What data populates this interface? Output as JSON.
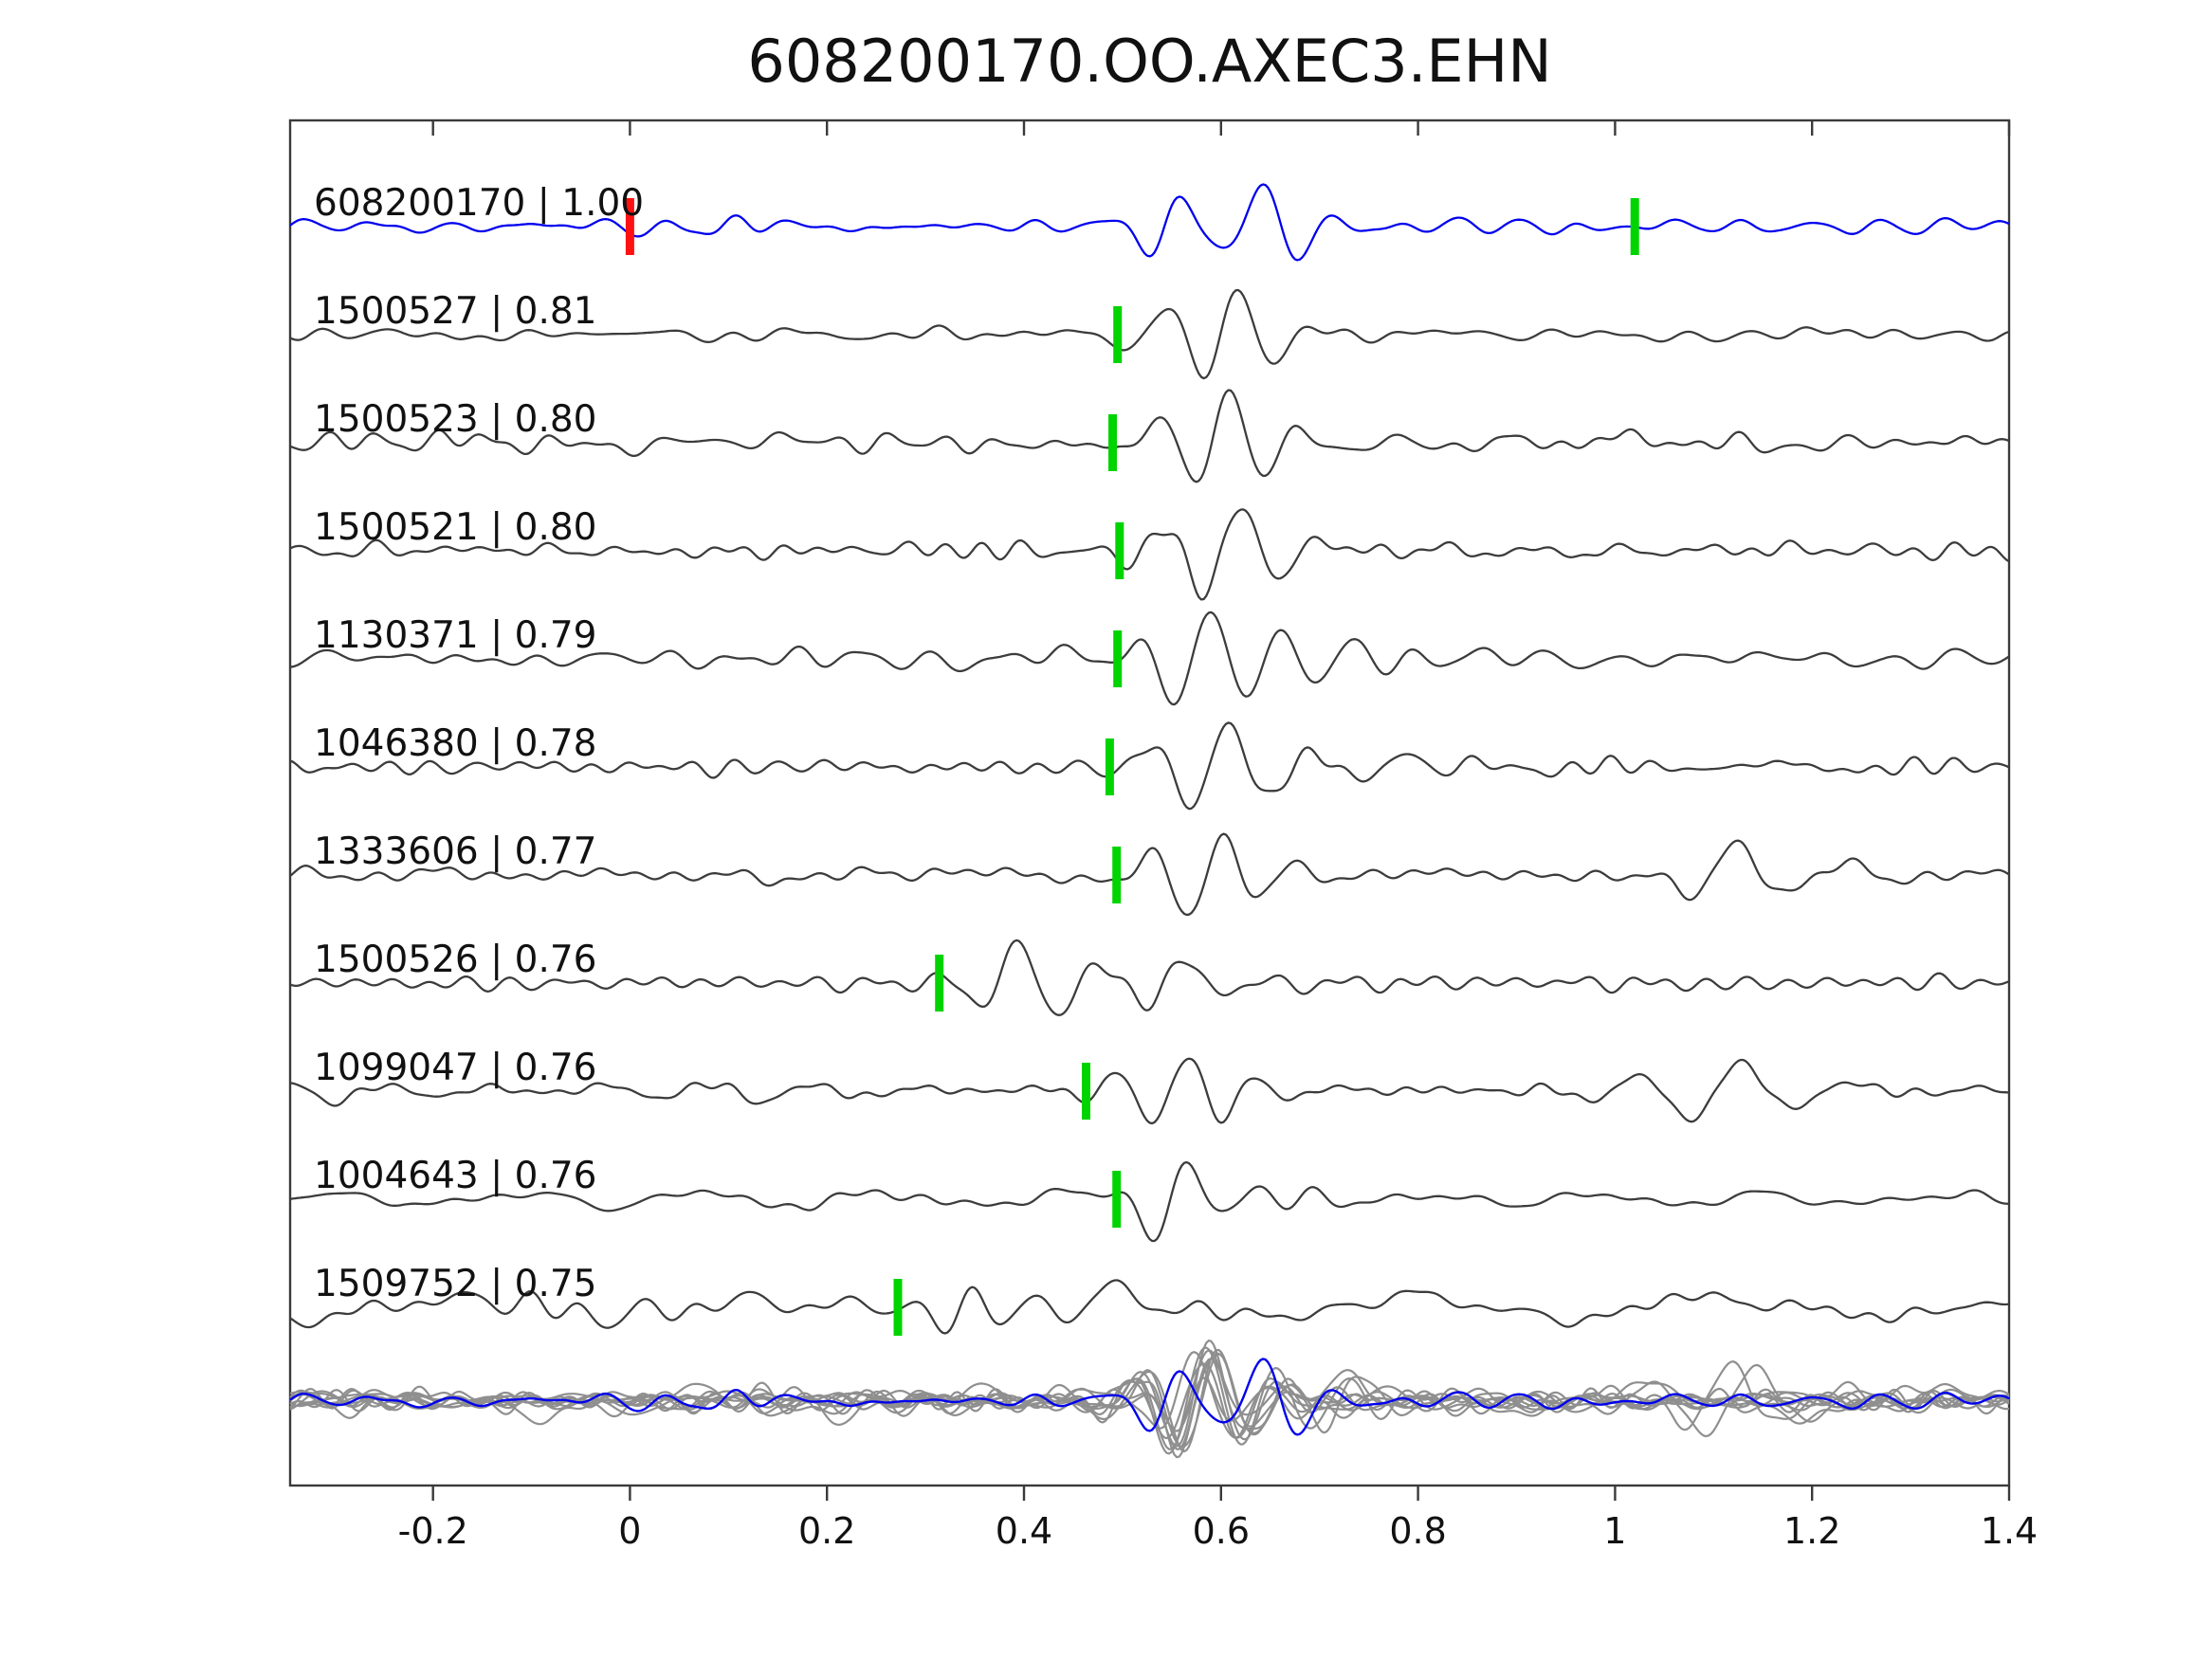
{
  "chart_data": {
    "type": "line",
    "subtype": "seismic-trace-stack",
    "title": "608200170.OO.AXEC3.EHN",
    "xlim": [
      -0.345,
      1.4
    ],
    "x_ticks": [
      -0.2,
      0,
      0.2,
      0.4,
      0.6,
      0.8,
      1,
      1.2,
      1.4
    ],
    "x_tick_labels": [
      "-0.2",
      "0",
      "0.2",
      "0.4",
      "0.6",
      "0.8",
      "1",
      "1.2",
      "1.4"
    ],
    "grid": false,
    "legend": null,
    "colors": {
      "template_trace": "#0000ee",
      "match_trace": "#3c3c3c",
      "overlay_trace": "#8f8f8f",
      "pick_green": "#00d400",
      "pick_red": "#ff1111",
      "frame": "#3a3a3a",
      "text": "#111111"
    },
    "traces": [
      {
        "id": "608200170",
        "score": "1.00",
        "label": "608200170 | 1.00",
        "role": "template",
        "picks": [
          {
            "x": 0.0,
            "color": "red"
          },
          {
            "x": 1.02,
            "color": "green"
          }
        ],
        "waveform": {
          "seed": 11,
          "noise_amp": 5.5,
          "packets": [
            {
              "c": 0.545,
              "w": 0.045,
              "f": 15,
              "a": 40,
              "ph": 0.3
            },
            {
              "c": 0.655,
              "w": 0.055,
              "f": 13,
              "a": 42,
              "ph": 2.6
            },
            {
              "c": 0.1,
              "w": 0.05,
              "f": 20,
              "a": 6,
              "ph": 0
            }
          ]
        }
      },
      {
        "id": "1500527",
        "score": "0.81",
        "label": "1500527 | 0.81",
        "role": "match",
        "picks": [
          {
            "x": 0.495,
            "color": "green"
          }
        ],
        "waveform": {
          "seed": 22,
          "noise_amp": 7,
          "packets": [
            {
              "c": 0.6,
              "w": 0.075,
              "f": 13,
              "a": 52,
              "ph": 0
            }
          ]
        }
      },
      {
        "id": "1500523",
        "score": "0.80",
        "label": "1500523 | 0.80",
        "role": "match",
        "picks": [
          {
            "x": 0.49,
            "color": "green"
          }
        ],
        "waveform": {
          "seed": 33,
          "noise_amp": 7.5,
          "packets": [
            {
              "c": 0.6,
              "w": 0.075,
              "f": 13,
              "a": 50,
              "ph": 0.8
            }
          ]
        }
      },
      {
        "id": "1500521",
        "score": "0.80",
        "label": "1500521 | 0.80",
        "role": "match",
        "picks": [
          {
            "x": 0.497,
            "color": "green"
          }
        ],
        "waveform": {
          "seed": 44,
          "noise_amp": 7,
          "packets": [
            {
              "c": 0.605,
              "w": 0.08,
              "f": 12.5,
              "a": 52,
              "ph": 0.4
            }
          ]
        }
      },
      {
        "id": "1130371",
        "score": "0.79",
        "label": "1130371 | 0.79",
        "role": "match",
        "picks": [
          {
            "x": 0.495,
            "color": "green"
          }
        ],
        "waveform": {
          "seed": 55,
          "noise_amp": 10,
          "packets": [
            {
              "c": 0.585,
              "w": 0.07,
              "f": 13,
              "a": 44,
              "ph": 1.2
            },
            {
              "c": 0.72,
              "w": 0.05,
              "f": 12,
              "a": 16,
              "ph": 0
            }
          ]
        }
      },
      {
        "id": "1046380",
        "score": "0.78",
        "label": "1046380 | 0.78",
        "role": "match",
        "picks": [
          {
            "x": 0.487,
            "color": "green"
          }
        ],
        "waveform": {
          "seed": 66,
          "noise_amp": 8,
          "packets": [
            {
              "c": 0.6,
              "w": 0.08,
              "f": 12,
              "a": 48,
              "ph": 0.9
            },
            {
              "c": 0.78,
              "w": 0.05,
              "f": 11,
              "a": 18,
              "ph": 1
            }
          ]
        }
      },
      {
        "id": "1333606",
        "score": "0.77",
        "label": "1333606 | 0.77",
        "role": "match",
        "picks": [
          {
            "x": 0.494,
            "color": "green"
          }
        ],
        "waveform": {
          "seed": 77,
          "noise_amp": 8,
          "packets": [
            {
              "c": 0.585,
              "w": 0.065,
              "f": 13,
              "a": 45,
              "ph": 0.2
            },
            {
              "c": 1.13,
              "w": 0.1,
              "f": 9,
              "a": 30,
              "ph": 1.8
            }
          ]
        }
      },
      {
        "id": "1500526",
        "score": "0.76",
        "label": "1500526 | 0.76",
        "role": "match",
        "picks": [
          {
            "x": 0.314,
            "color": "green"
          }
        ],
        "waveform": {
          "seed": 88,
          "noise_amp": 7,
          "packets": [
            {
              "c": 0.4,
              "w": 0.065,
              "f": 12,
              "a": 46,
              "ph": 2.2
            },
            {
              "c": 0.55,
              "w": 0.06,
              "f": 11,
              "a": 22,
              "ph": 0.5
            }
          ]
        }
      },
      {
        "id": "1099047",
        "score": "0.76",
        "label": "1099047 | 0.76",
        "role": "match",
        "picks": [
          {
            "x": 0.463,
            "color": "green"
          }
        ],
        "waveform": {
          "seed": 99,
          "noise_amp": 8,
          "packets": [
            {
              "c": 0.565,
              "w": 0.07,
              "f": 13,
              "a": 46,
              "ph": 1.5
            },
            {
              "c": 1.1,
              "w": 0.11,
              "f": 9,
              "a": 28,
              "ph": 0.2
            }
          ]
        }
      },
      {
        "id": "1004643",
        "score": "0.76",
        "label": "1004643 | 0.76",
        "role": "match",
        "picks": [
          {
            "x": 0.494,
            "color": "green"
          }
        ],
        "waveform": {
          "seed": 110,
          "noise_amp": 7.5,
          "packets": [
            {
              "c": 0.555,
              "w": 0.055,
              "f": 13,
              "a": 44,
              "ph": 0.6
            },
            {
              "c": 0.7,
              "w": 0.04,
              "f": 12,
              "a": 18,
              "ph": 2
            }
          ]
        }
      },
      {
        "id": "1509752",
        "score": "0.75",
        "label": "1509752 | 0.75",
        "role": "match",
        "picks": [
          {
            "x": 0.272,
            "color": "green"
          }
        ],
        "waveform": {
          "seed": 121,
          "noise_amp": 11,
          "packets": [
            {
              "c": 0.0,
              "w": 0.2,
              "f": 18,
              "a": 10,
              "ph": 0.5
            },
            {
              "c": 0.345,
              "w": 0.04,
              "f": 15,
              "a": 34,
              "ph": 1
            },
            {
              "c": 0.5,
              "w": 0.07,
              "f": 10,
              "a": 22,
              "ph": 2.4
            },
            {
              "c": 0.62,
              "w": 0.05,
              "f": 11,
              "a": 14,
              "ph": 0
            }
          ]
        }
      }
    ],
    "overlay_row": {
      "description": "all aligned traces superimposed, matches in gray, template in blue",
      "align_center": 0.58,
      "amp_scale": 1.15
    }
  }
}
